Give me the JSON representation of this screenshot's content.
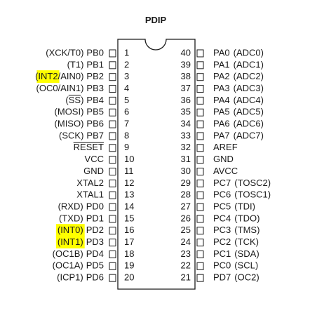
{
  "package": {
    "title": "PDIP"
  },
  "highlight_color": "#ffff00",
  "left_pins": [
    {
      "num": "1",
      "pin": "PB0",
      "fn": "(XCK/T0)"
    },
    {
      "num": "2",
      "pin": "PB1",
      "fn": "(T1)"
    },
    {
      "num": "3",
      "pin": "PB2",
      "fn": "(INT2/AIN0)",
      "highlight": "INT2"
    },
    {
      "num": "4",
      "pin": "PB3",
      "fn": "(OC0/AIN1)"
    },
    {
      "num": "5",
      "pin": "PB4",
      "fn": "(SS)",
      "overline": "SS"
    },
    {
      "num": "6",
      "pin": "PB5",
      "fn": "(MOSI)"
    },
    {
      "num": "7",
      "pin": "PB6",
      "fn": "(MISO)"
    },
    {
      "num": "8",
      "pin": "PB7",
      "fn": "(SCK)"
    },
    {
      "num": "9",
      "pin": "RESET",
      "fn": "",
      "overline": "RESET"
    },
    {
      "num": "10",
      "pin": "VCC",
      "fn": ""
    },
    {
      "num": "11",
      "pin": "GND",
      "fn": ""
    },
    {
      "num": "12",
      "pin": "XTAL2",
      "fn": ""
    },
    {
      "num": "13",
      "pin": "XTAL1",
      "fn": ""
    },
    {
      "num": "14",
      "pin": "PD0",
      "fn": "(RXD)"
    },
    {
      "num": "15",
      "pin": "PD1",
      "fn": "(TXD)"
    },
    {
      "num": "16",
      "pin": "PD2",
      "fn": "(INT0)",
      "highlight": "(INT0)"
    },
    {
      "num": "17",
      "pin": "PD3",
      "fn": "(INT1)",
      "highlight": "(INT1)"
    },
    {
      "num": "18",
      "pin": "PD4",
      "fn": "(OC1B)"
    },
    {
      "num": "19",
      "pin": "PD5",
      "fn": "(OC1A)"
    },
    {
      "num": "20",
      "pin": "PD6",
      "fn": "(ICP1)"
    }
  ],
  "right_pins": [
    {
      "num": "40",
      "pin": "PA0",
      "fn": "(ADC0)"
    },
    {
      "num": "39",
      "pin": "PA1",
      "fn": "(ADC1)"
    },
    {
      "num": "38",
      "pin": "PA2",
      "fn": "(ADC2)"
    },
    {
      "num": "37",
      "pin": "PA3",
      "fn": "(ADC3)"
    },
    {
      "num": "36",
      "pin": "PA4",
      "fn": "(ADC4)"
    },
    {
      "num": "35",
      "pin": "PA5",
      "fn": "(ADC5)"
    },
    {
      "num": "34",
      "pin": "PA6",
      "fn": "(ADC6)"
    },
    {
      "num": "33",
      "pin": "PA7",
      "fn": "(ADC7)"
    },
    {
      "num": "32",
      "pin": "AREF",
      "fn": ""
    },
    {
      "num": "31",
      "pin": "GND",
      "fn": ""
    },
    {
      "num": "30",
      "pin": "AVCC",
      "fn": ""
    },
    {
      "num": "29",
      "pin": "PC7",
      "fn": "(TOSC2)"
    },
    {
      "num": "28",
      "pin": "PC6",
      "fn": "(TOSC1)"
    },
    {
      "num": "27",
      "pin": "PC5",
      "fn": "(TDI)"
    },
    {
      "num": "26",
      "pin": "PC4",
      "fn": "(TDO)"
    },
    {
      "num": "25",
      "pin": "PC3",
      "fn": "(TMS)"
    },
    {
      "num": "24",
      "pin": "PC2",
      "fn": "(TCK)"
    },
    {
      "num": "23",
      "pin": "PC1",
      "fn": "(SDA)"
    },
    {
      "num": "22",
      "pin": "PC0",
      "fn": "(SCL)"
    },
    {
      "num": "21",
      "pin": "PD7",
      "fn": "(OC2)"
    }
  ]
}
